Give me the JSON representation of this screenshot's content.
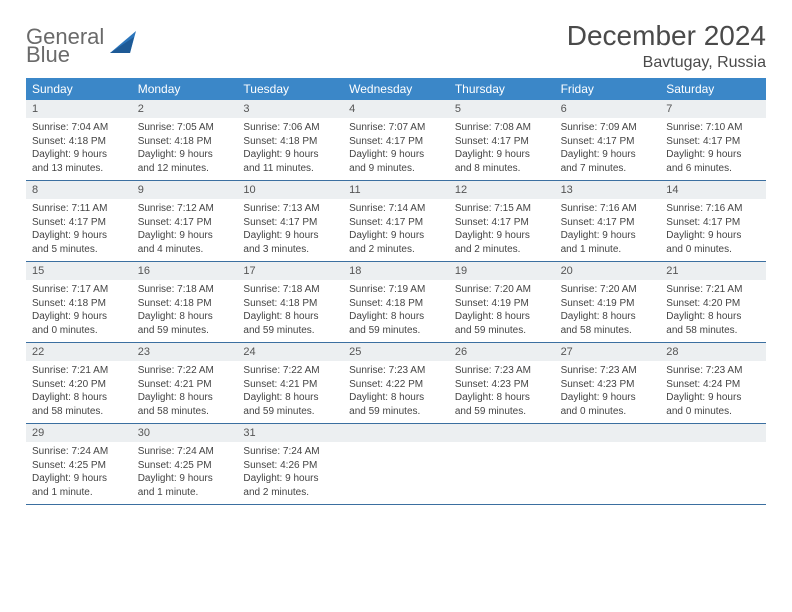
{
  "logo": {
    "line1": "General",
    "line2": "Blue"
  },
  "title": "December 2024",
  "location": "Bavtugay, Russia",
  "colors": {
    "header_bg": "#3b87c8",
    "header_text": "#ffffff",
    "date_band_bg": "#eceff1",
    "week_border": "#3b6fa0",
    "logo_gray": "#6a6a6a",
    "logo_blue": "#2b75bb",
    "title_color": "#4a4a4a",
    "body_text": "#444444",
    "page_bg": "#ffffff"
  },
  "day_names": [
    "Sunday",
    "Monday",
    "Tuesday",
    "Wednesday",
    "Thursday",
    "Friday",
    "Saturday"
  ],
  "weeks": [
    [
      {
        "date": "1",
        "sunrise": "Sunrise: 7:04 AM",
        "sunset": "Sunset: 4:18 PM",
        "daylight": "Daylight: 9 hours and 13 minutes."
      },
      {
        "date": "2",
        "sunrise": "Sunrise: 7:05 AM",
        "sunset": "Sunset: 4:18 PM",
        "daylight": "Daylight: 9 hours and 12 minutes."
      },
      {
        "date": "3",
        "sunrise": "Sunrise: 7:06 AM",
        "sunset": "Sunset: 4:18 PM",
        "daylight": "Daylight: 9 hours and 11 minutes."
      },
      {
        "date": "4",
        "sunrise": "Sunrise: 7:07 AM",
        "sunset": "Sunset: 4:17 PM",
        "daylight": "Daylight: 9 hours and 9 minutes."
      },
      {
        "date": "5",
        "sunrise": "Sunrise: 7:08 AM",
        "sunset": "Sunset: 4:17 PM",
        "daylight": "Daylight: 9 hours and 8 minutes."
      },
      {
        "date": "6",
        "sunrise": "Sunrise: 7:09 AM",
        "sunset": "Sunset: 4:17 PM",
        "daylight": "Daylight: 9 hours and 7 minutes."
      },
      {
        "date": "7",
        "sunrise": "Sunrise: 7:10 AM",
        "sunset": "Sunset: 4:17 PM",
        "daylight": "Daylight: 9 hours and 6 minutes."
      }
    ],
    [
      {
        "date": "8",
        "sunrise": "Sunrise: 7:11 AM",
        "sunset": "Sunset: 4:17 PM",
        "daylight": "Daylight: 9 hours and 5 minutes."
      },
      {
        "date": "9",
        "sunrise": "Sunrise: 7:12 AM",
        "sunset": "Sunset: 4:17 PM",
        "daylight": "Daylight: 9 hours and 4 minutes."
      },
      {
        "date": "10",
        "sunrise": "Sunrise: 7:13 AM",
        "sunset": "Sunset: 4:17 PM",
        "daylight": "Daylight: 9 hours and 3 minutes."
      },
      {
        "date": "11",
        "sunrise": "Sunrise: 7:14 AM",
        "sunset": "Sunset: 4:17 PM",
        "daylight": "Daylight: 9 hours and 2 minutes."
      },
      {
        "date": "12",
        "sunrise": "Sunrise: 7:15 AM",
        "sunset": "Sunset: 4:17 PM",
        "daylight": "Daylight: 9 hours and 2 minutes."
      },
      {
        "date": "13",
        "sunrise": "Sunrise: 7:16 AM",
        "sunset": "Sunset: 4:17 PM",
        "daylight": "Daylight: 9 hours and 1 minute."
      },
      {
        "date": "14",
        "sunrise": "Sunrise: 7:16 AM",
        "sunset": "Sunset: 4:17 PM",
        "daylight": "Daylight: 9 hours and 0 minutes."
      }
    ],
    [
      {
        "date": "15",
        "sunrise": "Sunrise: 7:17 AM",
        "sunset": "Sunset: 4:18 PM",
        "daylight": "Daylight: 9 hours and 0 minutes."
      },
      {
        "date": "16",
        "sunrise": "Sunrise: 7:18 AM",
        "sunset": "Sunset: 4:18 PM",
        "daylight": "Daylight: 8 hours and 59 minutes."
      },
      {
        "date": "17",
        "sunrise": "Sunrise: 7:18 AM",
        "sunset": "Sunset: 4:18 PM",
        "daylight": "Daylight: 8 hours and 59 minutes."
      },
      {
        "date": "18",
        "sunrise": "Sunrise: 7:19 AM",
        "sunset": "Sunset: 4:18 PM",
        "daylight": "Daylight: 8 hours and 59 minutes."
      },
      {
        "date": "19",
        "sunrise": "Sunrise: 7:20 AM",
        "sunset": "Sunset: 4:19 PM",
        "daylight": "Daylight: 8 hours and 59 minutes."
      },
      {
        "date": "20",
        "sunrise": "Sunrise: 7:20 AM",
        "sunset": "Sunset: 4:19 PM",
        "daylight": "Daylight: 8 hours and 58 minutes."
      },
      {
        "date": "21",
        "sunrise": "Sunrise: 7:21 AM",
        "sunset": "Sunset: 4:20 PM",
        "daylight": "Daylight: 8 hours and 58 minutes."
      }
    ],
    [
      {
        "date": "22",
        "sunrise": "Sunrise: 7:21 AM",
        "sunset": "Sunset: 4:20 PM",
        "daylight": "Daylight: 8 hours and 58 minutes."
      },
      {
        "date": "23",
        "sunrise": "Sunrise: 7:22 AM",
        "sunset": "Sunset: 4:21 PM",
        "daylight": "Daylight: 8 hours and 58 minutes."
      },
      {
        "date": "24",
        "sunrise": "Sunrise: 7:22 AM",
        "sunset": "Sunset: 4:21 PM",
        "daylight": "Daylight: 8 hours and 59 minutes."
      },
      {
        "date": "25",
        "sunrise": "Sunrise: 7:23 AM",
        "sunset": "Sunset: 4:22 PM",
        "daylight": "Daylight: 8 hours and 59 minutes."
      },
      {
        "date": "26",
        "sunrise": "Sunrise: 7:23 AM",
        "sunset": "Sunset: 4:23 PM",
        "daylight": "Daylight: 8 hours and 59 minutes."
      },
      {
        "date": "27",
        "sunrise": "Sunrise: 7:23 AM",
        "sunset": "Sunset: 4:23 PM",
        "daylight": "Daylight: 9 hours and 0 minutes."
      },
      {
        "date": "28",
        "sunrise": "Sunrise: 7:23 AM",
        "sunset": "Sunset: 4:24 PM",
        "daylight": "Daylight: 9 hours and 0 minutes."
      }
    ],
    [
      {
        "date": "29",
        "sunrise": "Sunrise: 7:24 AM",
        "sunset": "Sunset: 4:25 PM",
        "daylight": "Daylight: 9 hours and 1 minute."
      },
      {
        "date": "30",
        "sunrise": "Sunrise: 7:24 AM",
        "sunset": "Sunset: 4:25 PM",
        "daylight": "Daylight: 9 hours and 1 minute."
      },
      {
        "date": "31",
        "sunrise": "Sunrise: 7:24 AM",
        "sunset": "Sunset: 4:26 PM",
        "daylight": "Daylight: 9 hours and 2 minutes."
      },
      {
        "empty": true
      },
      {
        "empty": true
      },
      {
        "empty": true
      },
      {
        "empty": true
      }
    ]
  ]
}
